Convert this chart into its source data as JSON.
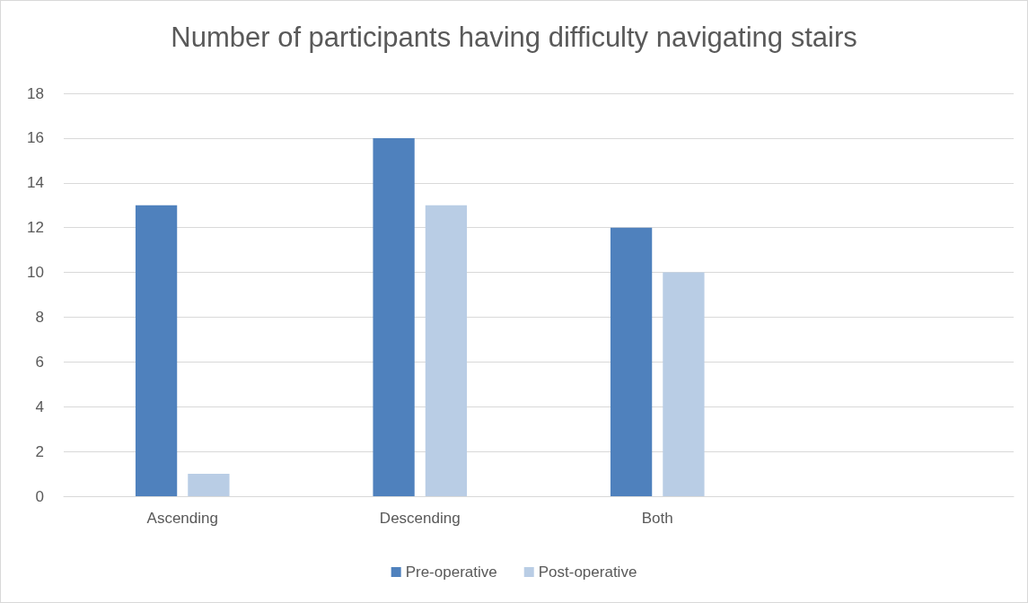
{
  "chart_data": {
    "type": "bar",
    "title": "Number of participants having difficulty navigating stairs",
    "categories": [
      "Ascending",
      "Descending",
      "Both",
      null
    ],
    "series": [
      {
        "name": "Pre-operative",
        "color": "#4f81bd",
        "values": [
          13,
          16,
          12,
          null
        ]
      },
      {
        "name": "Post-operative",
        "color": "#b9cde5",
        "values": [
          1,
          13,
          10,
          null
        ]
      }
    ],
    "ylim": [
      0,
      18
    ],
    "yticks": [
      0,
      2,
      4,
      6,
      8,
      10,
      12,
      14,
      16,
      18
    ],
    "grid": "y",
    "legend": "bottom"
  }
}
